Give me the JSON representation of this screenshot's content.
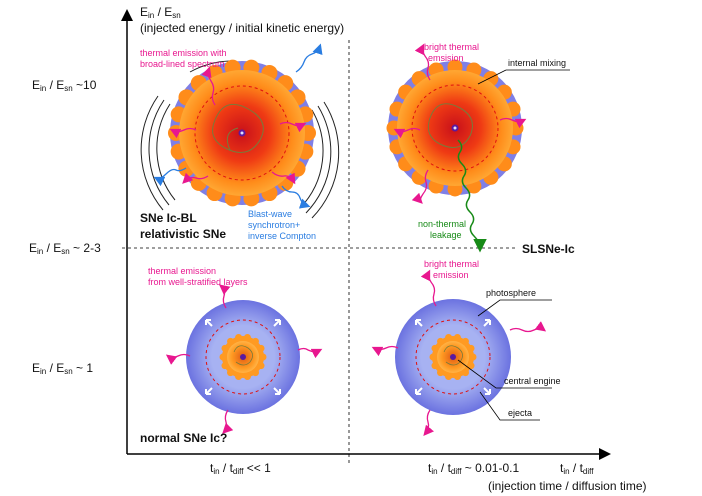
{
  "axes": {
    "y_title_line1": "E",
    "y_title_in": "in",
    "y_title_mid": " / E",
    "y_title_sn": "sn",
    "y_subtitle": "(injected energy / initial kinetic energy)",
    "y_tick_top": {
      "a": "E",
      "b": "in",
      "c": " / E",
      "d": "sn",
      "e": " ~10"
    },
    "y_tick_mid": {
      "a": "E",
      "b": "in",
      "c": " / E",
      "d": "sn",
      "e": " ~ 2-3"
    },
    "y_tick_low": {
      "a": "E",
      "b": "in",
      "c": " / E",
      "d": "sn",
      "e": " ~ 1"
    },
    "x_tick_left": {
      "a": "t",
      "b": "in",
      "c": " / t",
      "d": "diff",
      "e": " << 1"
    },
    "x_tick_right": {
      "a": "t",
      "b": "in",
      "c": " / t",
      "d": "diff",
      "e": " ~ 0.01-0.1"
    },
    "x_title": {
      "a": "t",
      "b": "in",
      "c": " / t",
      "d": "diff"
    },
    "x_subtitle": "(injection time / diffusion time)"
  },
  "quadrants": {
    "top_left": {
      "label_line1": "SNe Ic-BL",
      "label_line2": "relativistic SNe",
      "thermal_line1": "thermal emission with",
      "thermal_line2": "broad-lined spectrum",
      "blast_line1": "Blast-wave",
      "blast_line2": "synchrotron+",
      "blast_line3": "inverse Compton"
    },
    "top_right": {
      "thermal_line1": "bright thermal",
      "thermal_line2": "emsision",
      "mixing": "internal mixing",
      "leak_line1": "non-thermal",
      "leak_line2": "leakage",
      "label": "SLSNe-Ic"
    },
    "bottom_left": {
      "thermal_line1": "thermal emission",
      "thermal_line2": "from well-stratified layers",
      "label": "normal SNe Ic?"
    },
    "bottom_right": {
      "thermal_line1": "bright thermal",
      "thermal_line2": "emission",
      "photosphere": "photosphere",
      "engine": "central engine",
      "ejecta": "ejecta"
    }
  },
  "colors": {
    "thermal": "#e8178f",
    "nonthermal_blue": "#2a7de1",
    "nonthermal_green": "#178a17",
    "ejecta": "#7f7fe6",
    "core": "#ff8c1a"
  }
}
